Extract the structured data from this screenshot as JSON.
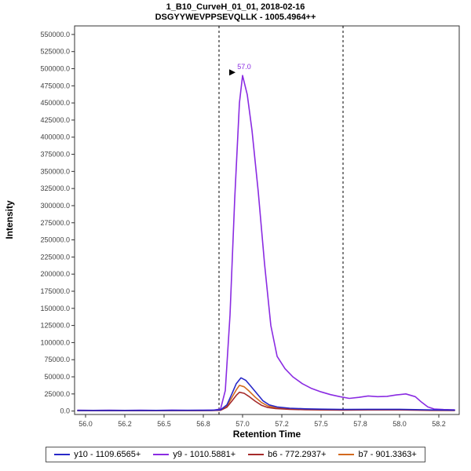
{
  "chart_data": {
    "type": "line",
    "title": "1_B10_CurveH_01_01, 2018-02-16",
    "subtitle": "DSGYYWEVPPSEVQLLK - 1005.4964++",
    "xlabel": "Retention Time",
    "ylabel": "Intensity",
    "xlim": [
      55.93,
      58.38
    ],
    "ylim": [
      -5000,
      562500
    ],
    "legend_position": "bottom",
    "grid": false,
    "x_ticks": [
      {
        "v": 56.0,
        "label": "56.0"
      },
      {
        "v": 56.25,
        "label": "56.2"
      },
      {
        "v": 56.5,
        "label": "56.5"
      },
      {
        "v": 56.75,
        "label": "56.8"
      },
      {
        "v": 57.0,
        "label": "57.0"
      },
      {
        "v": 57.25,
        "label": "57.2"
      },
      {
        "v": 57.5,
        "label": "57.5"
      },
      {
        "v": 57.75,
        "label": "57.8"
      },
      {
        "v": 58.0,
        "label": "58.0"
      },
      {
        "v": 58.25,
        "label": "58.2"
      }
    ],
    "y_ticks": [
      {
        "v": 0,
        "label": "0.0"
      },
      {
        "v": 25000,
        "label": "25000.0"
      },
      {
        "v": 50000,
        "label": "50000.0"
      },
      {
        "v": 75000,
        "label": "75000.0"
      },
      {
        "v": 100000,
        "label": "100000.0"
      },
      {
        "v": 125000,
        "label": "125000.0"
      },
      {
        "v": 150000,
        "label": "150000.0"
      },
      {
        "v": 175000,
        "label": "175000.0"
      },
      {
        "v": 200000,
        "label": "200000.0"
      },
      {
        "v": 225000,
        "label": "225000.0"
      },
      {
        "v": 250000,
        "label": "250000.0"
      },
      {
        "v": 275000,
        "label": "275000.0"
      },
      {
        "v": 300000,
        "label": "300000.0"
      },
      {
        "v": 325000,
        "label": "325000.0"
      },
      {
        "v": 350000,
        "label": "350000.0"
      },
      {
        "v": 375000,
        "label": "375000.0"
      },
      {
        "v": 400000,
        "label": "400000.0"
      },
      {
        "v": 425000,
        "label": "425000.0"
      },
      {
        "v": 450000,
        "label": "450000.0"
      },
      {
        "v": 475000,
        "label": "475000.0"
      },
      {
        "v": 500000,
        "label": "500000.0"
      },
      {
        "v": 525000,
        "label": "525000.0"
      },
      {
        "v": 550000,
        "label": "550000.0"
      }
    ],
    "peak_boundaries": [
      56.85,
      57.64
    ],
    "annotation": {
      "label": "57.0",
      "x": 57.0,
      "y": 490000,
      "color": "#8a2be2",
      "pointer_color": "#000000"
    },
    "series": [
      {
        "id": "y10",
        "name": "y10 - 1109.6565+",
        "color": "#2828c8",
        "points": [
          [
            55.95,
            900
          ],
          [
            56.2,
            800
          ],
          [
            56.5,
            1000
          ],
          [
            56.8,
            1100
          ],
          [
            56.86,
            1800
          ],
          [
            56.9,
            9000
          ],
          [
            56.93,
            24000
          ],
          [
            56.96,
            40000
          ],
          [
            56.99,
            48500
          ],
          [
            57.02,
            45000
          ],
          [
            57.05,
            37000
          ],
          [
            57.09,
            26000
          ],
          [
            57.13,
            15000
          ],
          [
            57.17,
            9000
          ],
          [
            57.22,
            6000
          ],
          [
            57.3,
            4200
          ],
          [
            57.4,
            3200
          ],
          [
            57.5,
            2800
          ],
          [
            57.64,
            2300
          ],
          [
            57.8,
            2600
          ],
          [
            58.0,
            2600
          ],
          [
            58.2,
            1600
          ],
          [
            58.35,
            1300
          ]
        ]
      },
      {
        "id": "y9",
        "name": "y9 - 1010.5881+",
        "color": "#8a2be2",
        "points": [
          [
            55.95,
            1200
          ],
          [
            56.05,
            1000
          ],
          [
            56.15,
            1300
          ],
          [
            56.25,
            1000
          ],
          [
            56.35,
            1200
          ],
          [
            56.45,
            1000
          ],
          [
            56.55,
            1400
          ],
          [
            56.65,
            1100
          ],
          [
            56.75,
            1300
          ],
          [
            56.82,
            1500
          ],
          [
            56.86,
            3000
          ],
          [
            56.89,
            30000
          ],
          [
            56.92,
            140000
          ],
          [
            56.95,
            310000
          ],
          [
            56.98,
            450000
          ],
          [
            57.0,
            490000
          ],
          [
            57.03,
            462000
          ],
          [
            57.06,
            410000
          ],
          [
            57.1,
            320000
          ],
          [
            57.14,
            215000
          ],
          [
            57.18,
            125000
          ],
          [
            57.22,
            80000
          ],
          [
            57.27,
            62000
          ],
          [
            57.32,
            50000
          ],
          [
            57.38,
            40000
          ],
          [
            57.44,
            33000
          ],
          [
            57.5,
            28000
          ],
          [
            57.56,
            24000
          ],
          [
            57.62,
            21000
          ],
          [
            57.68,
            18500
          ],
          [
            57.74,
            20000
          ],
          [
            57.8,
            22000
          ],
          [
            57.86,
            21000
          ],
          [
            57.92,
            21500
          ],
          [
            57.98,
            23500
          ],
          [
            58.04,
            25000
          ],
          [
            58.1,
            21000
          ],
          [
            58.14,
            13000
          ],
          [
            58.18,
            6000
          ],
          [
            58.22,
            3000
          ],
          [
            58.28,
            2200
          ],
          [
            58.35,
            1800
          ]
        ]
      },
      {
        "id": "b6",
        "name": "b6 - 772.2937+",
        "color": "#a52a2a",
        "points": [
          [
            55.95,
            600
          ],
          [
            56.3,
            550
          ],
          [
            56.6,
            650
          ],
          [
            56.8,
            750
          ],
          [
            56.86,
            1100
          ],
          [
            56.9,
            5500
          ],
          [
            56.93,
            14000
          ],
          [
            56.96,
            23000
          ],
          [
            56.98,
            27500
          ],
          [
            57.01,
            26000
          ],
          [
            57.04,
            21500
          ],
          [
            57.08,
            14500
          ],
          [
            57.12,
            8500
          ],
          [
            57.16,
            5200
          ],
          [
            57.21,
            3700
          ],
          [
            57.3,
            2600
          ],
          [
            57.4,
            1900
          ],
          [
            57.5,
            1600
          ],
          [
            57.64,
            1400
          ],
          [
            57.8,
            1600
          ],
          [
            58.0,
            1600
          ],
          [
            58.2,
            1000
          ],
          [
            58.35,
            900
          ]
        ]
      },
      {
        "id": "b7",
        "name": "b7 - 901.3363+",
        "color": "#d2691e",
        "points": [
          [
            55.95,
            700
          ],
          [
            56.3,
            700
          ],
          [
            56.6,
            800
          ],
          [
            56.8,
            900
          ],
          [
            56.86,
            1400
          ],
          [
            56.9,
            7500
          ],
          [
            56.93,
            19000
          ],
          [
            56.96,
            31000
          ],
          [
            56.98,
            37500
          ],
          [
            57.01,
            35500
          ],
          [
            57.04,
            29500
          ],
          [
            57.08,
            20500
          ],
          [
            57.12,
            12500
          ],
          [
            57.16,
            7500
          ],
          [
            57.21,
            5000
          ],
          [
            57.3,
            3300
          ],
          [
            57.4,
            2500
          ],
          [
            57.5,
            2200
          ],
          [
            57.64,
            1900
          ],
          [
            57.8,
            2100
          ],
          [
            58.0,
            2100
          ],
          [
            58.2,
            1300
          ],
          [
            58.35,
            1100
          ]
        ]
      }
    ]
  }
}
